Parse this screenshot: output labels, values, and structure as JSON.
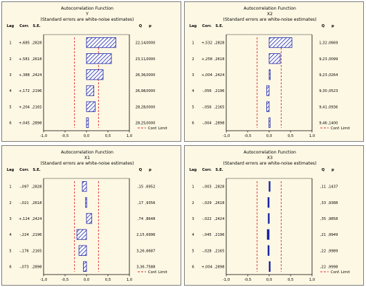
{
  "chart_data": [
    {
      "type": "bar",
      "title": "Autocorrelation Function",
      "subtitle": "Y",
      "note": "(Standard errors are white-noise estimates)",
      "col_headers": {
        "lag": "Lag",
        "corr": "Corr.",
        "se": "S.E.",
        "q": "Q",
        "p": "p"
      },
      "lags": [
        "1",
        "2",
        "3",
        "4",
        "5",
        "6"
      ],
      "values": [
        0.685,
        0.581,
        0.388,
        0.172,
        0.204,
        0.045
      ],
      "corr_labels": [
        "+,685",
        "+,581",
        "+,388",
        "+,172",
        "+,204",
        "+,045"
      ],
      "se_labels": [
        ",2828",
        ",2618",
        ",2424",
        ",2196",
        ",2165",
        ",2898"
      ],
      "q_labels": [
        "22,14",
        "23,11",
        "26,36",
        "26,98",
        "28,28",
        "28,25"
      ],
      "p_labels": [
        ",0000",
        ",0000",
        ",0000",
        ",0000",
        ",0000",
        ",0000"
      ],
      "conf_limit": 0.28,
      "xlim": [
        -1,
        1
      ],
      "x_ticks": [
        "-1,0",
        "-0,5",
        "0,0",
        "0,5",
        "1,0"
      ],
      "x_tick_values": [
        -1,
        -0.5,
        0,
        0.5,
        1
      ],
      "legend_label": "Conf. Limit",
      "bar_style": "hatched"
    },
    {
      "type": "bar",
      "title": "Autocorrelation Function",
      "subtitle": "X2",
      "note": "(Standard errors are white-noise estimates)",
      "col_headers": {
        "lag": "Lag",
        "corr": "Corr.",
        "se": "S.E.",
        "q": "Q",
        "p": "p"
      },
      "lags": [
        "1",
        "2",
        "3",
        "4",
        "5",
        "6"
      ],
      "values": [
        0.532,
        0.258,
        0.004,
        -0.056,
        -0.056,
        -0.004
      ],
      "corr_labels": [
        "+,532",
        "+,258",
        "+,004",
        "-,056",
        "-,056",
        "-,004"
      ],
      "se_labels": [
        ",2828",
        ",2618",
        ",2424",
        ",2196",
        ",2165",
        ",2898"
      ],
      "q_labels": [
        "1,32",
        "9,23",
        "9,23",
        "9,30",
        "9,41",
        "9,46"
      ],
      "p_labels": [
        ",0669",
        ",0099",
        ",0264",
        ",0523",
        ",0936",
        ",1400"
      ],
      "conf_limit": 0.28,
      "xlim": [
        -1,
        1
      ],
      "x_ticks": [
        "-1,0",
        "-0,5",
        "0,0",
        "0,5",
        "1,0"
      ],
      "x_tick_values": [
        -1,
        -0.5,
        0,
        0.5,
        1
      ],
      "legend_label": "Conf. Limit",
      "bar_style": "hatched"
    },
    {
      "type": "bar",
      "title": "Autocorrelation Function",
      "subtitle": "X1",
      "note": "(Standard errors are white-noise estimates)",
      "col_headers": {
        "lag": "Lag",
        "corr": "Corr.",
        "se": "S.E.",
        "q": "Q",
        "p": "p"
      },
      "lags": [
        "1",
        "2",
        "3",
        "4",
        "5",
        "6"
      ],
      "values": [
        -0.097,
        -0.021,
        0.124,
        -0.224,
        -0.176,
        -0.073
      ],
      "corr_labels": [
        "-,097",
        "-,021",
        "+,124",
        "-,224",
        "-,176",
        "-,073"
      ],
      "se_labels": [
        ",2828",
        ",2618",
        ",2424",
        ",2196",
        ",2165",
        ",2898"
      ],
      "q_labels": [
        ",15",
        ",17",
        ",74",
        "2,15",
        "3,26",
        "3,36"
      ],
      "p_labels": [
        ",6952",
        ",9356",
        ",8648",
        ",6996",
        ",6687",
        ",7588"
      ],
      "conf_limit": 0.28,
      "xlim": [
        -1,
        1
      ],
      "x_ticks": [
        "-1,0",
        "-0,5",
        "0,0",
        "0,5",
        "1,0"
      ],
      "x_tick_values": [
        -1,
        -0.5,
        0,
        0.5,
        1
      ],
      "legend_label": "Conf. Limit",
      "bar_style": "hatched"
    },
    {
      "type": "bar",
      "title": "Autocorrelation Function",
      "subtitle": "X3",
      "note": "(Standard errors are white-noise estimates)",
      "col_headers": {
        "lag": "Lag",
        "corr": "Corr.",
        "se": "S.E.",
        "q": "Q",
        "p": "p"
      },
      "lags": [
        "1",
        "2",
        "3",
        "4",
        "5",
        "6"
      ],
      "values": [
        -0.003,
        -0.029,
        -0.022,
        -0.045,
        -0.028,
        0.004
      ],
      "corr_labels": [
        "-,003",
        "-,029",
        "-,022",
        "-,045",
        "-,028",
        "+,004"
      ],
      "se_labels": [
        ",2828",
        ",2618",
        ",2424",
        ",2196",
        ",2165",
        ",2898"
      ],
      "q_labels": [
        ",11",
        ",33",
        ",35",
        ",21",
        ",22",
        ",22"
      ],
      "p_labels": [
        ",1437",
        ",9388",
        ",9858",
        ",9949",
        ",9989",
        ",9998"
      ],
      "conf_limit": 0.28,
      "xlim": [
        -1,
        1
      ],
      "x_ticks": [
        "-1,0",
        "-0,5",
        "0,0",
        "0,5",
        "1,0"
      ],
      "x_tick_values": [
        -1,
        -0.5,
        0,
        0.5,
        1
      ],
      "legend_label": "Conf. Limit",
      "bar_style": "solid"
    }
  ]
}
